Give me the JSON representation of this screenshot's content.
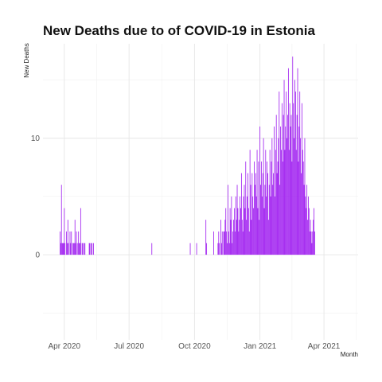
{
  "chart_data": {
    "type": "bar",
    "title": "New Deaths due to of COVID-19 in Estonia",
    "xlabel": "Month",
    "ylabel": "New Deaths",
    "x_ticks": [
      {
        "date": "2020-04-01",
        "label": "Apr 2020"
      },
      {
        "date": "2020-07-01",
        "label": "Jul 2020"
      },
      {
        "date": "2020-10-01",
        "label": "Oct 2020"
      },
      {
        "date": "2021-01-01",
        "label": "Jan 2021"
      },
      {
        "date": "2021-04-01",
        "label": "Apr 2021"
      }
    ],
    "y_ticks": [
      0,
      10
    ],
    "xlim": [
      "2020-03-02",
      "2021-05-19"
    ],
    "ylim": [
      -7.3,
      18.1
    ],
    "grid": true,
    "bar_color": "#a020f0",
    "series": [
      {
        "start_date": "2020-03-26",
        "step_days": 1,
        "values": [
          2,
          1,
          6,
          1,
          1,
          1,
          4,
          1,
          0,
          2,
          1,
          3,
          1,
          0,
          2,
          1,
          2,
          0,
          1,
          1,
          1,
          3,
          1,
          2,
          0,
          1,
          2,
          1,
          1,
          4,
          0,
          1,
          1,
          0,
          1,
          1,
          0,
          0,
          0,
          0,
          0,
          1,
          1,
          0,
          1,
          1,
          0,
          1,
          0,
          0,
          0,
          0,
          0,
          0,
          0,
          0,
          0,
          0,
          0,
          0,
          0,
          0,
          0,
          0,
          0,
          0,
          0,
          0,
          0,
          0,
          0,
          0,
          0,
          0,
          0,
          0,
          0,
          0,
          0,
          0,
          0,
          0,
          0,
          0,
          0,
          0,
          0,
          0,
          0,
          0,
          0,
          0,
          0,
          0,
          0,
          0,
          0,
          0,
          0,
          0,
          0,
          0,
          0,
          0,
          0,
          0,
          0,
          0,
          0,
          0,
          0,
          0,
          0,
          0,
          0,
          0,
          0,
          0,
          0,
          0,
          0,
          0,
          0,
          0,
          0,
          0,
          0,
          0,
          0,
          1,
          0,
          0,
          0,
          0,
          0,
          0,
          0,
          0,
          0,
          0,
          0,
          0,
          0,
          0,
          0,
          0,
          0,
          0,
          0,
          0,
          0,
          0,
          0,
          0,
          0,
          0,
          0,
          0,
          0,
          0,
          0,
          0,
          0,
          0,
          0,
          0,
          0,
          0,
          0,
          0,
          0,
          0,
          0,
          0,
          0,
          0,
          0,
          0,
          0,
          0,
          0,
          0,
          0,
          1,
          0,
          0,
          0,
          0,
          0,
          0,
          0,
          0,
          1,
          0,
          0,
          0,
          0,
          0,
          0,
          0,
          0,
          0,
          0,
          0,
          0,
          3,
          1,
          0,
          0,
          0,
          0,
          0,
          0,
          0,
          0,
          0,
          2,
          0,
          0,
          0,
          0,
          0,
          1,
          2,
          1,
          0,
          3,
          1,
          2,
          0,
          2,
          2,
          3,
          4,
          2,
          1,
          6,
          2,
          1,
          4,
          3,
          5,
          1,
          2,
          3,
          4,
          2,
          5,
          3,
          6,
          4,
          2,
          3,
          5,
          4,
          7,
          3,
          2,
          5,
          6,
          4,
          8,
          3,
          5,
          7,
          4,
          2,
          9,
          6,
          3,
          7,
          5,
          4,
          8,
          6,
          7,
          5,
          9,
          4,
          8,
          3,
          11,
          6,
          8,
          5,
          7,
          10,
          4,
          6,
          9,
          5,
          8,
          7,
          3,
          6,
          9,
          5,
          8,
          10,
          6,
          7,
          11,
          5,
          9,
          12,
          7,
          8,
          10,
          14,
          6,
          11,
          9,
          13,
          8,
          12,
          15,
          9,
          11,
          14,
          10,
          12,
          16,
          9,
          13,
          11,
          12,
          8,
          17,
          13,
          10,
          15,
          14,
          9,
          12,
          16,
          8,
          11,
          14,
          10,
          7,
          13,
          9,
          8,
          6,
          10,
          5,
          4,
          6,
          3,
          5,
          4,
          2,
          3,
          2,
          1,
          2,
          3,
          4,
          2
        ]
      }
    ]
  }
}
